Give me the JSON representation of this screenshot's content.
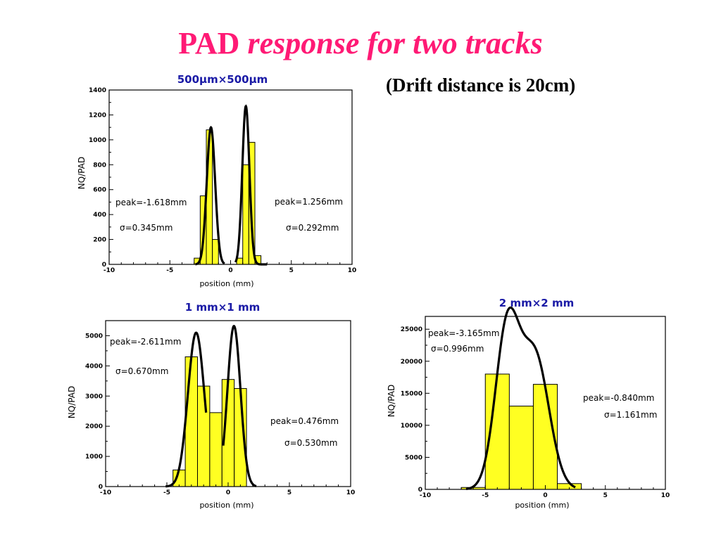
{
  "slide": {
    "title_plain": "PAD",
    "title_italic": "response for two tracks",
    "subtitle": "(Drift distance is 20cm)"
  },
  "colors": {
    "title": "#ff1a75",
    "histogram_fill": "#ffff22",
    "fit_curve": "#000000",
    "panel_title": "#1a1aa6"
  },
  "chart_data": [
    {
      "type": "bar",
      "title": "500μm×500μm",
      "xlabel": "position (mm)",
      "ylabel": "NQ/PAD",
      "xlim": [
        -10,
        10
      ],
      "ylim": [
        0,
        1400
      ],
      "xticks": [
        -10,
        -5,
        0,
        5,
        10
      ],
      "yticks": [
        0,
        200,
        400,
        600,
        800,
        1000,
        1200,
        1400
      ],
      "bin_width": 0.5,
      "histogram": [
        {
          "x": -2.75,
          "y": 50
        },
        {
          "x": -2.25,
          "y": 550
        },
        {
          "x": -1.75,
          "y": 1080
        },
        {
          "x": -1.25,
          "y": 200
        },
        {
          "x": 0.75,
          "y": 50
        },
        {
          "x": 1.25,
          "y": 800
        },
        {
          "x": 1.75,
          "y": 980
        },
        {
          "x": 2.25,
          "y": 70
        }
      ],
      "fits": [
        {
          "peak": -1.618,
          "sigma": 0.345,
          "amplitude": 1100,
          "range": [
            -2.9,
            -0.5
          ]
        },
        {
          "peak": 1.256,
          "sigma": 0.292,
          "amplitude": 1270,
          "range": [
            0.4,
            3.0
          ]
        }
      ],
      "annotations": [
        "peak=-1.618mm",
        "σ=0.345mm",
        "peak=1.256mm",
        "σ=0.292mm"
      ]
    },
    {
      "type": "bar",
      "title": "1 mm×1 mm",
      "xlabel": "position (mm)",
      "ylabel": "NQ/PAD",
      "xlim": [
        -10,
        10
      ],
      "ylim": [
        0,
        5500
      ],
      "xticks": [
        -10,
        -5,
        0,
        5,
        10
      ],
      "yticks": [
        0,
        1000,
        2000,
        3000,
        4000,
        5000
      ],
      "bin_width": 1,
      "histogram": [
        {
          "x": -4,
          "y": 550
        },
        {
          "x": -3,
          "y": 4300
        },
        {
          "x": -2,
          "y": 3330
        },
        {
          "x": -1,
          "y": 2450
        },
        {
          "x": 0,
          "y": 3550
        },
        {
          "x": 1,
          "y": 3250
        }
      ],
      "fits": [
        {
          "peak": -2.611,
          "sigma": 0.67,
          "amplitude": 5100,
          "range": [
            -5.1,
            -1.8
          ]
        },
        {
          "peak": 0.476,
          "sigma": 0.53,
          "amplitude": 5320,
          "range": [
            -0.4,
            2.3
          ]
        }
      ],
      "annotations": [
        "peak=-2.611mm",
        "σ=0.670mm",
        "peak=0.476mm",
        "σ=0.530mm"
      ]
    },
    {
      "type": "bar",
      "title": "2 mm×2 mm",
      "xlabel": "position (mm)",
      "ylabel": "NQ/PAD",
      "xlim": [
        -10,
        10
      ],
      "ylim": [
        0,
        27000
      ],
      "xticks": [
        -10,
        -5,
        0,
        5,
        10
      ],
      "yticks": [
        0,
        5000,
        10000,
        15000,
        20000,
        25000
      ],
      "bin_width": 2,
      "histogram": [
        {
          "x": -6,
          "y": 300
        },
        {
          "x": -4,
          "y": 18000
        },
        {
          "x": -2,
          "y": 13000
        },
        {
          "x": 0,
          "y": 16400
        },
        {
          "x": 2,
          "y": 900
        }
      ],
      "fits": [
        {
          "peak": -3.165,
          "sigma": 0.996,
          "amplitude": 25000,
          "range": [
            -6.6,
            2.5
          ],
          "sum_with_next": true
        },
        {
          "peak": -0.84,
          "sigma": 1.161,
          "amplitude": 20500,
          "range": [
            -6.6,
            2.5
          ]
        }
      ],
      "annotations": [
        "peak=-3.165mm",
        "σ=0.996mm",
        "peak=-0.840mm",
        "σ=1.161mm"
      ]
    }
  ]
}
